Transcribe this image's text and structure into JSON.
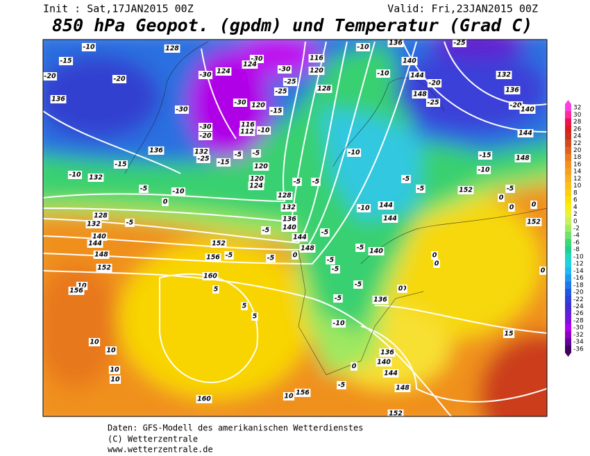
{
  "header": {
    "init": "Init : Sat,17JAN2015 00Z",
    "valid": "Valid: Fri,23JAN2015 00Z",
    "title": "850 hPa Geopot. (gpdm) und Temperatur (Grad C)"
  },
  "colorbar": {
    "values": [
      32,
      30,
      28,
      26,
      24,
      22,
      20,
      18,
      16,
      14,
      12,
      10,
      8,
      6,
      4,
      2,
      0,
      -2,
      -4,
      -6,
      -8,
      -10,
      -12,
      -14,
      -16,
      -18,
      -20,
      -22,
      -24,
      -26,
      -28,
      -30,
      -32,
      -34,
      -36
    ],
    "colors": [
      "#ff40e0",
      "#ff2aa0",
      "#ee1155",
      "#dd1c1c",
      "#c8321e",
      "#d24a1e",
      "#e0601e",
      "#ee7a1e",
      "#f59020",
      "#f7a020",
      "#f8b020",
      "#fac01a",
      "#fcd010",
      "#fde008",
      "#f5ee10",
      "#e8f040",
      "#c8f060",
      "#a0ec60",
      "#70e070",
      "#40d870",
      "#20d090",
      "#20d8c0",
      "#20d0e0",
      "#20b8f0",
      "#2098f0",
      "#2078e8",
      "#2058e0",
      "#3040d8",
      "#4030d0",
      "#6020d8",
      "#8010e0",
      "#b000f0",
      "#9000c0",
      "#6000a0",
      "#400060"
    ]
  },
  "map": {
    "labels": [
      -10,
      -15,
      -20,
      -20,
      136,
      128,
      -30,
      124,
      -30,
      -30,
      -30,
      -30,
      124,
      -30,
      120,
      116,
      112,
      -10,
      -15,
      -25,
      -25,
      120,
      116,
      128,
      -10,
      136,
      -25,
      -10,
      140,
      144,
      -20,
      132,
      136,
      148,
      -25,
      -20,
      140,
      144,
      -15,
      -10,
      148,
      136,
      -15,
      -10,
      132,
      -5,
      -10,
      0,
      -20,
      132,
      -25,
      -15,
      -5,
      -5,
      120,
      120,
      124,
      128,
      132,
      136,
      140,
      144,
      148,
      -5,
      -5,
      -10,
      -5,
      -5,
      -10,
      144,
      144,
      -5,
      -5,
      152,
      -5,
      0,
      0,
      0,
      152,
      128,
      132,
      -5,
      140,
      144,
      148,
      152,
      152,
      156,
      -5,
      -5,
      0,
      -5,
      -5,
      -5,
      140,
      0,
      0,
      0,
      0,
      160,
      10,
      156,
      5,
      -5,
      -5,
      0,
      136,
      5,
      5,
      -10,
      15,
      10,
      10,
      10,
      10,
      136,
      140,
      144,
      148,
      0,
      -5,
      156,
      10,
      160,
      152
    ]
  },
  "footer": {
    "line1": "Daten: GFS-Modell des amerikanischen Wetterdienstes",
    "line2": "(C) Wetterzentrale",
    "line3": "www.wetterzentrale.de"
  }
}
